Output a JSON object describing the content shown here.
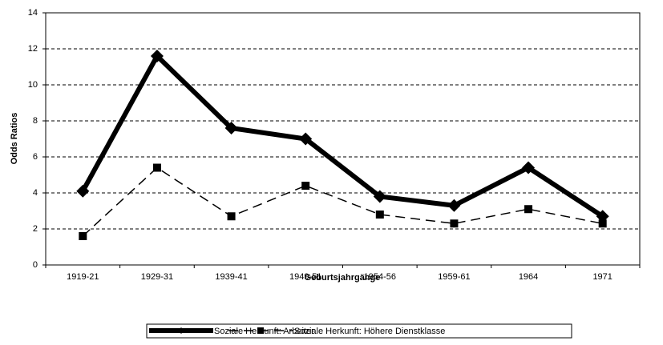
{
  "chart_data": {
    "type": "line",
    "x_label": "Geburtsjahrgänge",
    "y_label": "Odds Ratios",
    "categories": [
      "1919-21",
      "1929-31",
      "1939-41",
      "1949-51",
      "1954-56",
      "1959-61",
      "1964",
      "1971"
    ],
    "series": [
      {
        "name": "Soziale Herkunft: Arbeiter",
        "color": "#000000",
        "linestyle": "solid",
        "marker": "diamond",
        "values": [
          4.1,
          11.6,
          7.6,
          7.0,
          3.8,
          3.3,
          5.4,
          2.7
        ]
      },
      {
        "name": "Soziale Herkunft: Höhere Dienstklasse",
        "color": "#000000",
        "linestyle": "dashed",
        "marker": "square",
        "values": [
          1.6,
          5.4,
          2.7,
          4.4,
          2.8,
          2.3,
          3.1,
          2.3
        ]
      }
    ],
    "ylim": [
      0,
      14
    ],
    "yticks": [
      0,
      2,
      4,
      6,
      8,
      10,
      12,
      14
    ],
    "grid": true,
    "legend": "bottom"
  }
}
